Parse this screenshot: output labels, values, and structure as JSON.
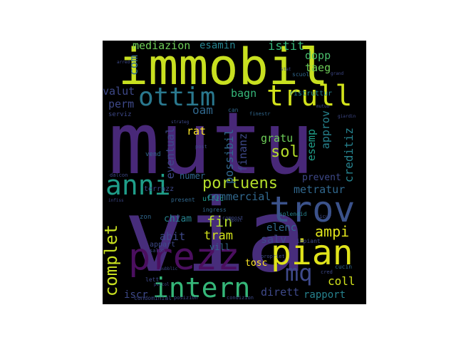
{
  "wordcloud": {
    "palette": [
      "#440154",
      "#482878",
      "#3e4989",
      "#31688e",
      "#26828e",
      "#1f9e89",
      "#35b779",
      "#6ece58",
      "#b5de2b",
      "#fde725"
    ],
    "words": {
      "immobil": "immobil",
      "mutu": "mutu",
      "via": "via",
      "prezz": "prezz",
      "pian": "pian",
      "trov": "trov",
      "intern": "intern",
      "ottim": "ottim",
      "trull": "trull",
      "anni": "anni",
      "portuens": "portuens",
      "mq": "mq",
      "mediazion": "mediazion",
      "esamin": "esamin",
      "istit": "istit",
      "dopp": "dopp",
      "taeg": "taeg",
      "valut": "valut",
      "bagn": "bagn",
      "perm": "perm",
      "oam": "oam",
      "rat": "rat",
      "possibil": "possibil",
      "finanz": "finanz",
      "gratu": "gratu",
      "sol": "sol",
      "esemp": "esemp",
      "approv": "approv",
      "creditiz": "creditiz",
      "eventual": "eventual",
      "numer": "numer",
      "prevent": "prevent",
      "commercial": "commercial",
      "metratur": "metratur",
      "terrazz": "terrazz",
      "uffic": "uffic",
      "chiam": "chiam",
      "fin": "fin",
      "tram": "tram",
      "ampi": "ampi",
      "elenc": "elenc",
      "abit": "abit",
      "salv": "salv",
      "complet": "complet",
      "appart": "appart",
      "vill": "vill",
      "tosc": "tosc",
      "coll": "coll",
      "iscr": "iscr",
      "dirett": "dirett",
      "rapport": "rapport",
      "com": "com",
      "ristruttur": "ristruttur",
      "vend": "vend",
      "zon": "zon",
      "splendid": "splendid",
      "ingress": "ingress",
      "impiant": "impiant",
      "lett": "lett",
      "condominial": "condominial",
      "posizion": "posizion",
      "condizion": "condizion",
      "cucin": "cucin",
      "present": "present",
      "serviz": "serviz",
      "salon": "salon",
      "compost": "compost",
      "scuol": "scuol",
      "propriet": "propriet",
      "finestr": "finestr",
      "post": "post",
      "can": "can",
      "sicur": "sicur",
      "cred": "cred",
      "dalcon": "dalcon",
      "grand": "grand",
      "piccol": "piccol",
      "pubblic": "pubblic",
      "stat": "stat",
      "strateg": "strateg",
      "infiss": "infiss",
      "ripost": "ripost",
      "giardin": "giardin",
      "arred": "arred",
      "mutuo": "mutuo"
    }
  }
}
